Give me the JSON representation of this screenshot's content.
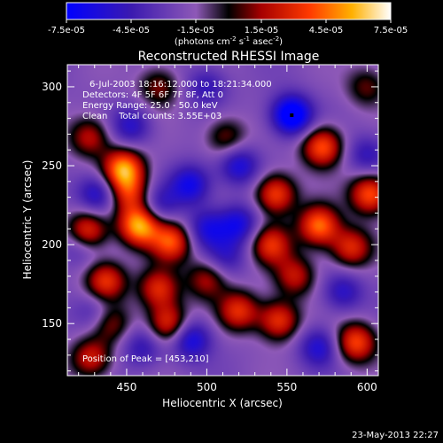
{
  "chart_data": {
    "type": "heatmap",
    "title": "Reconstructed RHESSI Image",
    "xlabel": "Heliocentric X (arcsec)",
    "ylabel": "Heliocentric Y (arcsec)",
    "xlim": [
      413,
      607
    ],
    "ylim": [
      117,
      314
    ],
    "x_ticks": [
      450,
      500,
      550,
      600
    ],
    "y_ticks": [
      150,
      200,
      250,
      300
    ],
    "colorbar": {
      "label_main": "(photons cm",
      "label_sup1": "-2",
      "label_mid": " s",
      "label_sup2": "-1",
      "label_mid2": " asec",
      "label_sup3": "-2",
      "label_end": ")",
      "range": [
        -7.5e-05,
        7.5e-05
      ],
      "tick_labels": [
        "-7.5e-05",
        "-4.5e-05",
        "-1.5e-05",
        "1.5e-05",
        "4.5e-05",
        "7.5e-05"
      ]
    },
    "annotations": {
      "time_range": "6-Jul-2003 18:16:12.000 to 18:21:34.000",
      "detectors": "Detectors: 4F 5F 6F 7F 8F, Att 0",
      "energy": "Energy Range: 25.0 - 50.0 keV",
      "method": "Clean    Total counts: 3.55E+03",
      "peak": "Position of Peak = [453,210]"
    },
    "peak_position": [
      453,
      210
    ],
    "min_marker": [
      553,
      282
    ],
    "sources": [
      {
        "x": 448,
        "y": 248,
        "v": 0.9
      },
      {
        "x": 425,
        "y": 208,
        "v": 0.75
      },
      {
        "x": 458,
        "y": 212,
        "v": 0.95
      },
      {
        "x": 478,
        "y": 202,
        "v": 0.7
      },
      {
        "x": 437,
        "y": 177,
        "v": 0.65
      },
      {
        "x": 428,
        "y": 128,
        "v": 0.55
      },
      {
        "x": 470,
        "y": 172,
        "v": 0.6
      },
      {
        "x": 476,
        "y": 150,
        "v": 0.65
      },
      {
        "x": 520,
        "y": 158,
        "v": 0.6
      },
      {
        "x": 545,
        "y": 152,
        "v": 0.65
      },
      {
        "x": 593,
        "y": 138,
        "v": 0.7
      },
      {
        "x": 572,
        "y": 262,
        "v": 0.75
      },
      {
        "x": 602,
        "y": 232,
        "v": 0.75
      },
      {
        "x": 570,
        "y": 212,
        "v": 0.8
      },
      {
        "x": 590,
        "y": 198,
        "v": 0.6
      },
      {
        "x": 543,
        "y": 232,
        "v": 0.7
      },
      {
        "x": 540,
        "y": 200,
        "v": 0.6
      },
      {
        "x": 555,
        "y": 180,
        "v": 0.5
      },
      {
        "x": 500,
        "y": 178,
        "v": 0.45
      },
      {
        "x": 470,
        "y": 300,
        "v": 0.4
      },
      {
        "x": 427,
        "y": 268,
        "v": 0.5
      },
      {
        "x": 600,
        "y": 300,
        "v": 0.35
      },
      {
        "x": 512,
        "y": 268,
        "v": 0.4
      },
      {
        "x": 440,
        "y": 150,
        "v": 0.4
      },
      {
        "x": 452,
        "y": 232,
        "v": 0.55
      },
      {
        "x": 432,
        "y": 232,
        "v": -0.5
      },
      {
        "x": 490,
        "y": 238,
        "v": -0.55
      },
      {
        "x": 520,
        "y": 250,
        "v": -0.5
      },
      {
        "x": 553,
        "y": 282,
        "v": -0.85
      },
      {
        "x": 420,
        "y": 200,
        "v": -0.35
      },
      {
        "x": 470,
        "y": 225,
        "v": -0.35
      },
      {
        "x": 500,
        "y": 210,
        "v": -0.45
      },
      {
        "x": 520,
        "y": 213,
        "v": -0.5
      },
      {
        "x": 490,
        "y": 140,
        "v": -0.55
      },
      {
        "x": 460,
        "y": 135,
        "v": -0.35
      },
      {
        "x": 570,
        "y": 135,
        "v": -0.45
      },
      {
        "x": 585,
        "y": 170,
        "v": -0.4
      },
      {
        "x": 600,
        "y": 257,
        "v": -0.35
      },
      {
        "x": 453,
        "y": 275,
        "v": -0.4
      },
      {
        "x": 500,
        "y": 300,
        "v": -0.35
      },
      {
        "x": 430,
        "y": 157,
        "v": -0.3
      },
      {
        "x": 512,
        "y": 192,
        "v": -0.3
      }
    ]
  },
  "footer": {
    "timestamp": "23-May-2013 22:27"
  }
}
